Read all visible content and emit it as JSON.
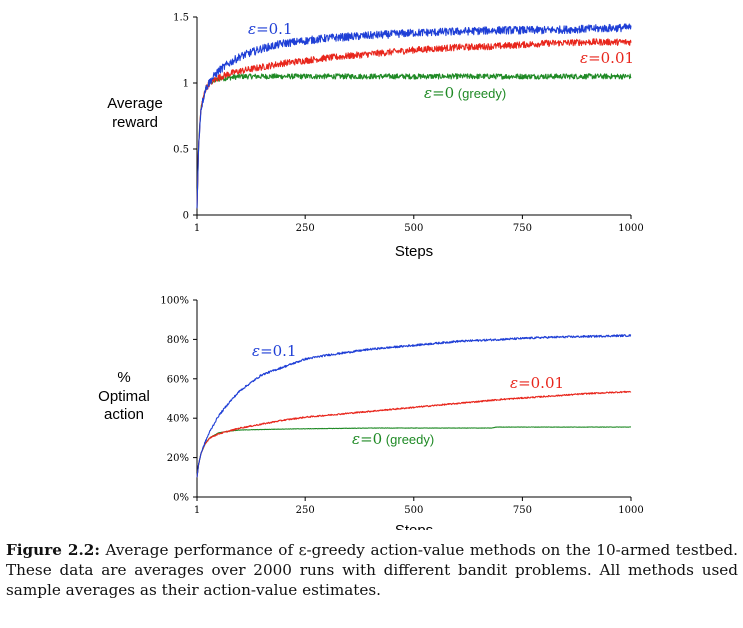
{
  "chart_data": [
    {
      "type": "line",
      "xlabel": "Steps",
      "ylabel": [
        "Average",
        "reward"
      ],
      "xlim": [
        1,
        1000
      ],
      "ylim": [
        0,
        1.5
      ],
      "xticks": [
        1,
        250,
        500,
        750,
        1000
      ],
      "xtick_labels": [
        "1",
        "250",
        "500",
        "750",
        "1000"
      ],
      "yticks": [
        0,
        0.5,
        1,
        1.5
      ],
      "ytick_labels": [
        "0",
        "0.5",
        "1",
        "1.5"
      ],
      "grid": false,
      "series": [
        {
          "name": "ε=0.1",
          "name_parts": [
            "ε",
            "=0.1"
          ],
          "color": "#1f3fd6",
          "noise": 0.03,
          "x": [
            1,
            5,
            10,
            20,
            30,
            50,
            75,
            100,
            150,
            200,
            250,
            300,
            400,
            500,
            600,
            700,
            800,
            900,
            1000
          ],
          "y": [
            0.05,
            0.55,
            0.8,
            0.95,
            1.01,
            1.09,
            1.15,
            1.2,
            1.26,
            1.3,
            1.32,
            1.34,
            1.36,
            1.38,
            1.39,
            1.4,
            1.4,
            1.41,
            1.42
          ]
        },
        {
          "name": "ε=0.01",
          "name_parts": [
            "ε",
            "=0.01"
          ],
          "color": "#e8261c",
          "noise": 0.025,
          "x": [
            1,
            5,
            10,
            20,
            30,
            50,
            75,
            100,
            150,
            200,
            250,
            300,
            400,
            500,
            600,
            700,
            800,
            900,
            1000
          ],
          "y": [
            0.05,
            0.55,
            0.8,
            0.95,
            1.0,
            1.04,
            1.07,
            1.09,
            1.12,
            1.15,
            1.17,
            1.19,
            1.22,
            1.25,
            1.27,
            1.28,
            1.3,
            1.31,
            1.31
          ]
        },
        {
          "name": "ε=0 (greedy)",
          "name_parts": [
            "ε",
            "=0",
            " (greedy)"
          ],
          "color": "#1f8a25",
          "noise": 0.02,
          "x": [
            1,
            5,
            10,
            20,
            30,
            50,
            75,
            100,
            200,
            400,
            600,
            800,
            1000
          ],
          "y": [
            0.05,
            0.55,
            0.8,
            0.95,
            1.0,
            1.03,
            1.04,
            1.05,
            1.05,
            1.05,
            1.05,
            1.05,
            1.05
          ]
        }
      ]
    },
    {
      "type": "line",
      "xlabel": "Steps",
      "ylabel": [
        "%",
        "Optimal",
        "action"
      ],
      "xlim": [
        1,
        1000
      ],
      "ylim": [
        0,
        100
      ],
      "xticks": [
        1,
        250,
        500,
        750,
        1000
      ],
      "xtick_labels": [
        "1",
        "250",
        "500",
        "750",
        "1000"
      ],
      "yticks": [
        0,
        20,
        40,
        60,
        80,
        100
      ],
      "ytick_labels": [
        "0%",
        "20%",
        "40%",
        "60%",
        "80%",
        "100%"
      ],
      "grid": false,
      "series": [
        {
          "name": "ε=0.1",
          "name_parts": [
            "ε",
            "=0.1"
          ],
          "color": "#1f3fd6",
          "noise": 0.5,
          "x": [
            1,
            5,
            10,
            20,
            30,
            50,
            75,
            100,
            150,
            200,
            250,
            300,
            400,
            500,
            600,
            700,
            800,
            900,
            1000
          ],
          "y": [
            10,
            17,
            22,
            28,
            33,
            41,
            48,
            54,
            62,
            66,
            70,
            72,
            75,
            77,
            79,
            80,
            81,
            81.5,
            82
          ]
        },
        {
          "name": "ε=0.01",
          "name_parts": [
            "ε",
            "=0.01"
          ],
          "color": "#e8261c",
          "noise": 0.35,
          "x": [
            1,
            5,
            10,
            20,
            30,
            50,
            75,
            100,
            150,
            200,
            250,
            300,
            400,
            500,
            600,
            700,
            800,
            900,
            1000
          ],
          "y": [
            10,
            17,
            22,
            27,
            30,
            32,
            33.5,
            35,
            37,
            39,
            40.5,
            41.5,
            43.5,
            45.5,
            47.5,
            49.5,
            51,
            52.5,
            53.5
          ]
        },
        {
          "name": "ε=0 (greedy)",
          "name_parts": [
            "ε",
            "=0",
            " (greedy)"
          ],
          "color": "#1f8a25",
          "noise": 0.1,
          "x": [
            1,
            5,
            10,
            20,
            30,
            50,
            75,
            100,
            200,
            400,
            600,
            680,
            690,
            800,
            1000
          ],
          "y": [
            10,
            17,
            22,
            27,
            30,
            32.5,
            33.5,
            34,
            34.5,
            35,
            35,
            35,
            35.5,
            35.5,
            35.5
          ]
        }
      ]
    }
  ],
  "caption": {
    "label": "Figure 2.2:",
    "text": " Average performance of ε-greedy action-value methods on the 10-armed testbed. These data are averages over 2000 runs with different bandit problems. All methods used sample averages as their action-value estimates."
  }
}
